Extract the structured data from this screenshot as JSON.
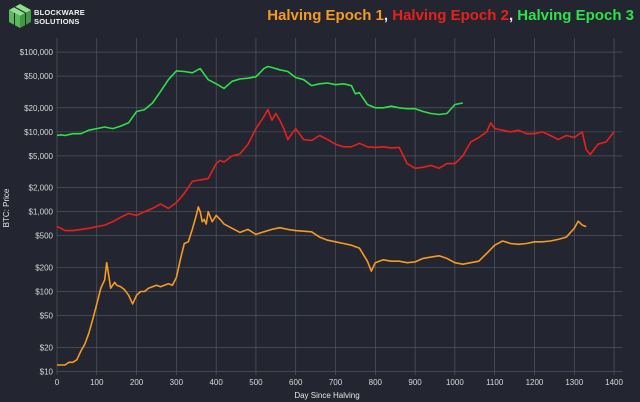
{
  "logo": {
    "line1": "BLOCKWARE",
    "line2": "SOLUTIONS",
    "color": "#7bd47a"
  },
  "chart_data": {
    "type": "line",
    "title_parts": [
      {
        "text": "Halving Epoch 1",
        "color": "#f59a23"
      },
      {
        "text": ", ",
        "color": "#e8e8e8"
      },
      {
        "text": "Halving Epoch 2",
        "color": "#e8201c"
      },
      {
        "text": ", ",
        "color": "#e8e8e8"
      },
      {
        "text": "Halving Epoch 3",
        "color": "#2ee04a"
      }
    ],
    "xlabel": "Day Since Halving",
    "ylabel": "BTC: Price",
    "xlim": [
      0,
      1420
    ],
    "ylim": [
      9,
      150000
    ],
    "yscale": "log",
    "grid": true,
    "x_ticks": [
      0,
      100,
      200,
      300,
      400,
      500,
      600,
      700,
      800,
      900,
      1000,
      1100,
      1200,
      1300,
      1400
    ],
    "y_ticks": [
      {
        "value": 10,
        "label": "$10"
      },
      {
        "value": 20,
        "label": "$20"
      },
      {
        "value": 50,
        "label": "$50"
      },
      {
        "value": 100,
        "label": "$100"
      },
      {
        "value": 200,
        "label": "$200"
      },
      {
        "value": 500,
        "label": "$500"
      },
      {
        "value": 1000,
        "label": "$1,000"
      },
      {
        "value": 2000,
        "label": "$2,000"
      },
      {
        "value": 5000,
        "label": "$5,000"
      },
      {
        "value": 10000,
        "label": "$10,000"
      },
      {
        "value": 20000,
        "label": "$20,000"
      },
      {
        "value": 50000,
        "label": "$50,000"
      },
      {
        "value": 100000,
        "label": "$100,000"
      }
    ],
    "series": [
      {
        "color": "#f59a23",
        "x": [
          0,
          10,
          20,
          30,
          40,
          50,
          60,
          70,
          80,
          90,
          100,
          110,
          120,
          125,
          130,
          135,
          140,
          145,
          150,
          160,
          170,
          180,
          190,
          200,
          210,
          220,
          230,
          240,
          250,
          260,
          270,
          280,
          290,
          300,
          310,
          320,
          330,
          340,
          350,
          355,
          360,
          365,
          370,
          375,
          380,
          390,
          400,
          410,
          420,
          440,
          460,
          480,
          500,
          520,
          540,
          560,
          580,
          600,
          620,
          640,
          660,
          680,
          700,
          720,
          740,
          760,
          780,
          790,
          800,
          820,
          840,
          860,
          880,
          900,
          920,
          940,
          960,
          980,
          1000,
          1020,
          1040,
          1060,
          1080,
          1100,
          1120,
          1140,
          1160,
          1180,
          1200,
          1220,
          1240,
          1260,
          1280,
          1300,
          1310,
          1320,
          1330
        ],
        "y": [
          12,
          12,
          12,
          13,
          13,
          14,
          18,
          22,
          30,
          45,
          70,
          110,
          140,
          230,
          160,
          110,
          120,
          130,
          120,
          115,
          105,
          90,
          70,
          90,
          100,
          100,
          110,
          115,
          120,
          115,
          120,
          125,
          120,
          150,
          250,
          400,
          420,
          600,
          900,
          1150,
          1000,
          750,
          800,
          700,
          1000,
          750,
          900,
          800,
          700,
          620,
          550,
          600,
          520,
          560,
          600,
          630,
          600,
          580,
          570,
          560,
          480,
          440,
          420,
          400,
          380,
          350,
          240,
          180,
          230,
          250,
          240,
          240,
          230,
          235,
          260,
          270,
          280,
          260,
          230,
          220,
          230,
          240,
          300,
          380,
          430,
          400,
          390,
          400,
          420,
          420,
          430,
          450,
          480,
          620,
          760,
          680,
          650
        ]
      },
      {
        "color": "#e8201c",
        "x": [
          0,
          10,
          20,
          40,
          60,
          80,
          100,
          120,
          140,
          160,
          180,
          200,
          220,
          240,
          260,
          280,
          300,
          320,
          340,
          360,
          380,
          400,
          410,
          420,
          440,
          460,
          480,
          500,
          520,
          530,
          540,
          550,
          560,
          570,
          580,
          590,
          600,
          620,
          640,
          660,
          680,
          700,
          720,
          740,
          760,
          780,
          800,
          820,
          840,
          860,
          880,
          900,
          920,
          940,
          960,
          980,
          1000,
          1020,
          1040,
          1060,
          1080,
          1090,
          1100,
          1120,
          1140,
          1160,
          1180,
          1200,
          1220,
          1240,
          1260,
          1280,
          1300,
          1320,
          1330,
          1340,
          1360,
          1380,
          1400
        ],
        "y": [
          650,
          620,
          580,
          580,
          600,
          620,
          650,
          680,
          750,
          850,
          950,
          900,
          1000,
          1100,
          1250,
          1100,
          1300,
          1700,
          2400,
          2500,
          2600,
          4000,
          4400,
          4200,
          5000,
          5300,
          7000,
          11000,
          15500,
          19000,
          14000,
          17000,
          14000,
          11000,
          8000,
          9500,
          11000,
          8000,
          7800,
          9000,
          8000,
          7000,
          6500,
          6500,
          7200,
          6500,
          6400,
          6500,
          6300,
          6400,
          4000,
          3500,
          3600,
          3800,
          3500,
          4000,
          4000,
          5000,
          7500,
          8500,
          10000,
          13000,
          11000,
          10500,
          10000,
          10500,
          9500,
          9500,
          10000,
          9000,
          8000,
          9000,
          8500,
          10000,
          6000,
          5200,
          7000,
          7500,
          10000
        ]
      },
      {
        "color": "#2ee04a",
        "x": [
          0,
          10,
          20,
          40,
          60,
          80,
          100,
          120,
          140,
          160,
          180,
          200,
          220,
          240,
          260,
          280,
          300,
          320,
          340,
          360,
          380,
          400,
          420,
          440,
          460,
          480,
          500,
          510,
          520,
          530,
          540,
          560,
          580,
          600,
          620,
          640,
          660,
          680,
          700,
          720,
          740,
          750,
          760,
          780,
          800,
          820,
          840,
          860,
          880,
          900,
          920,
          940,
          960,
          980,
          1000,
          1020
        ],
        "y": [
          9000,
          9200,
          9000,
          9500,
          9500,
          10500,
          11000,
          11500,
          11000,
          11800,
          13000,
          18000,
          19000,
          23000,
          32000,
          45000,
          58000,
          57000,
          55000,
          62000,
          45000,
          40000,
          35000,
          43000,
          46000,
          47000,
          49000,
          55000,
          62000,
          66000,
          64000,
          60000,
          57000,
          48000,
          45000,
          38000,
          40000,
          41000,
          39000,
          40000,
          38000,
          30000,
          31000,
          22000,
          20000,
          20000,
          21000,
          20000,
          19500,
          19500,
          18000,
          17000,
          16500,
          17000,
          22000,
          23000
        ]
      }
    ]
  }
}
